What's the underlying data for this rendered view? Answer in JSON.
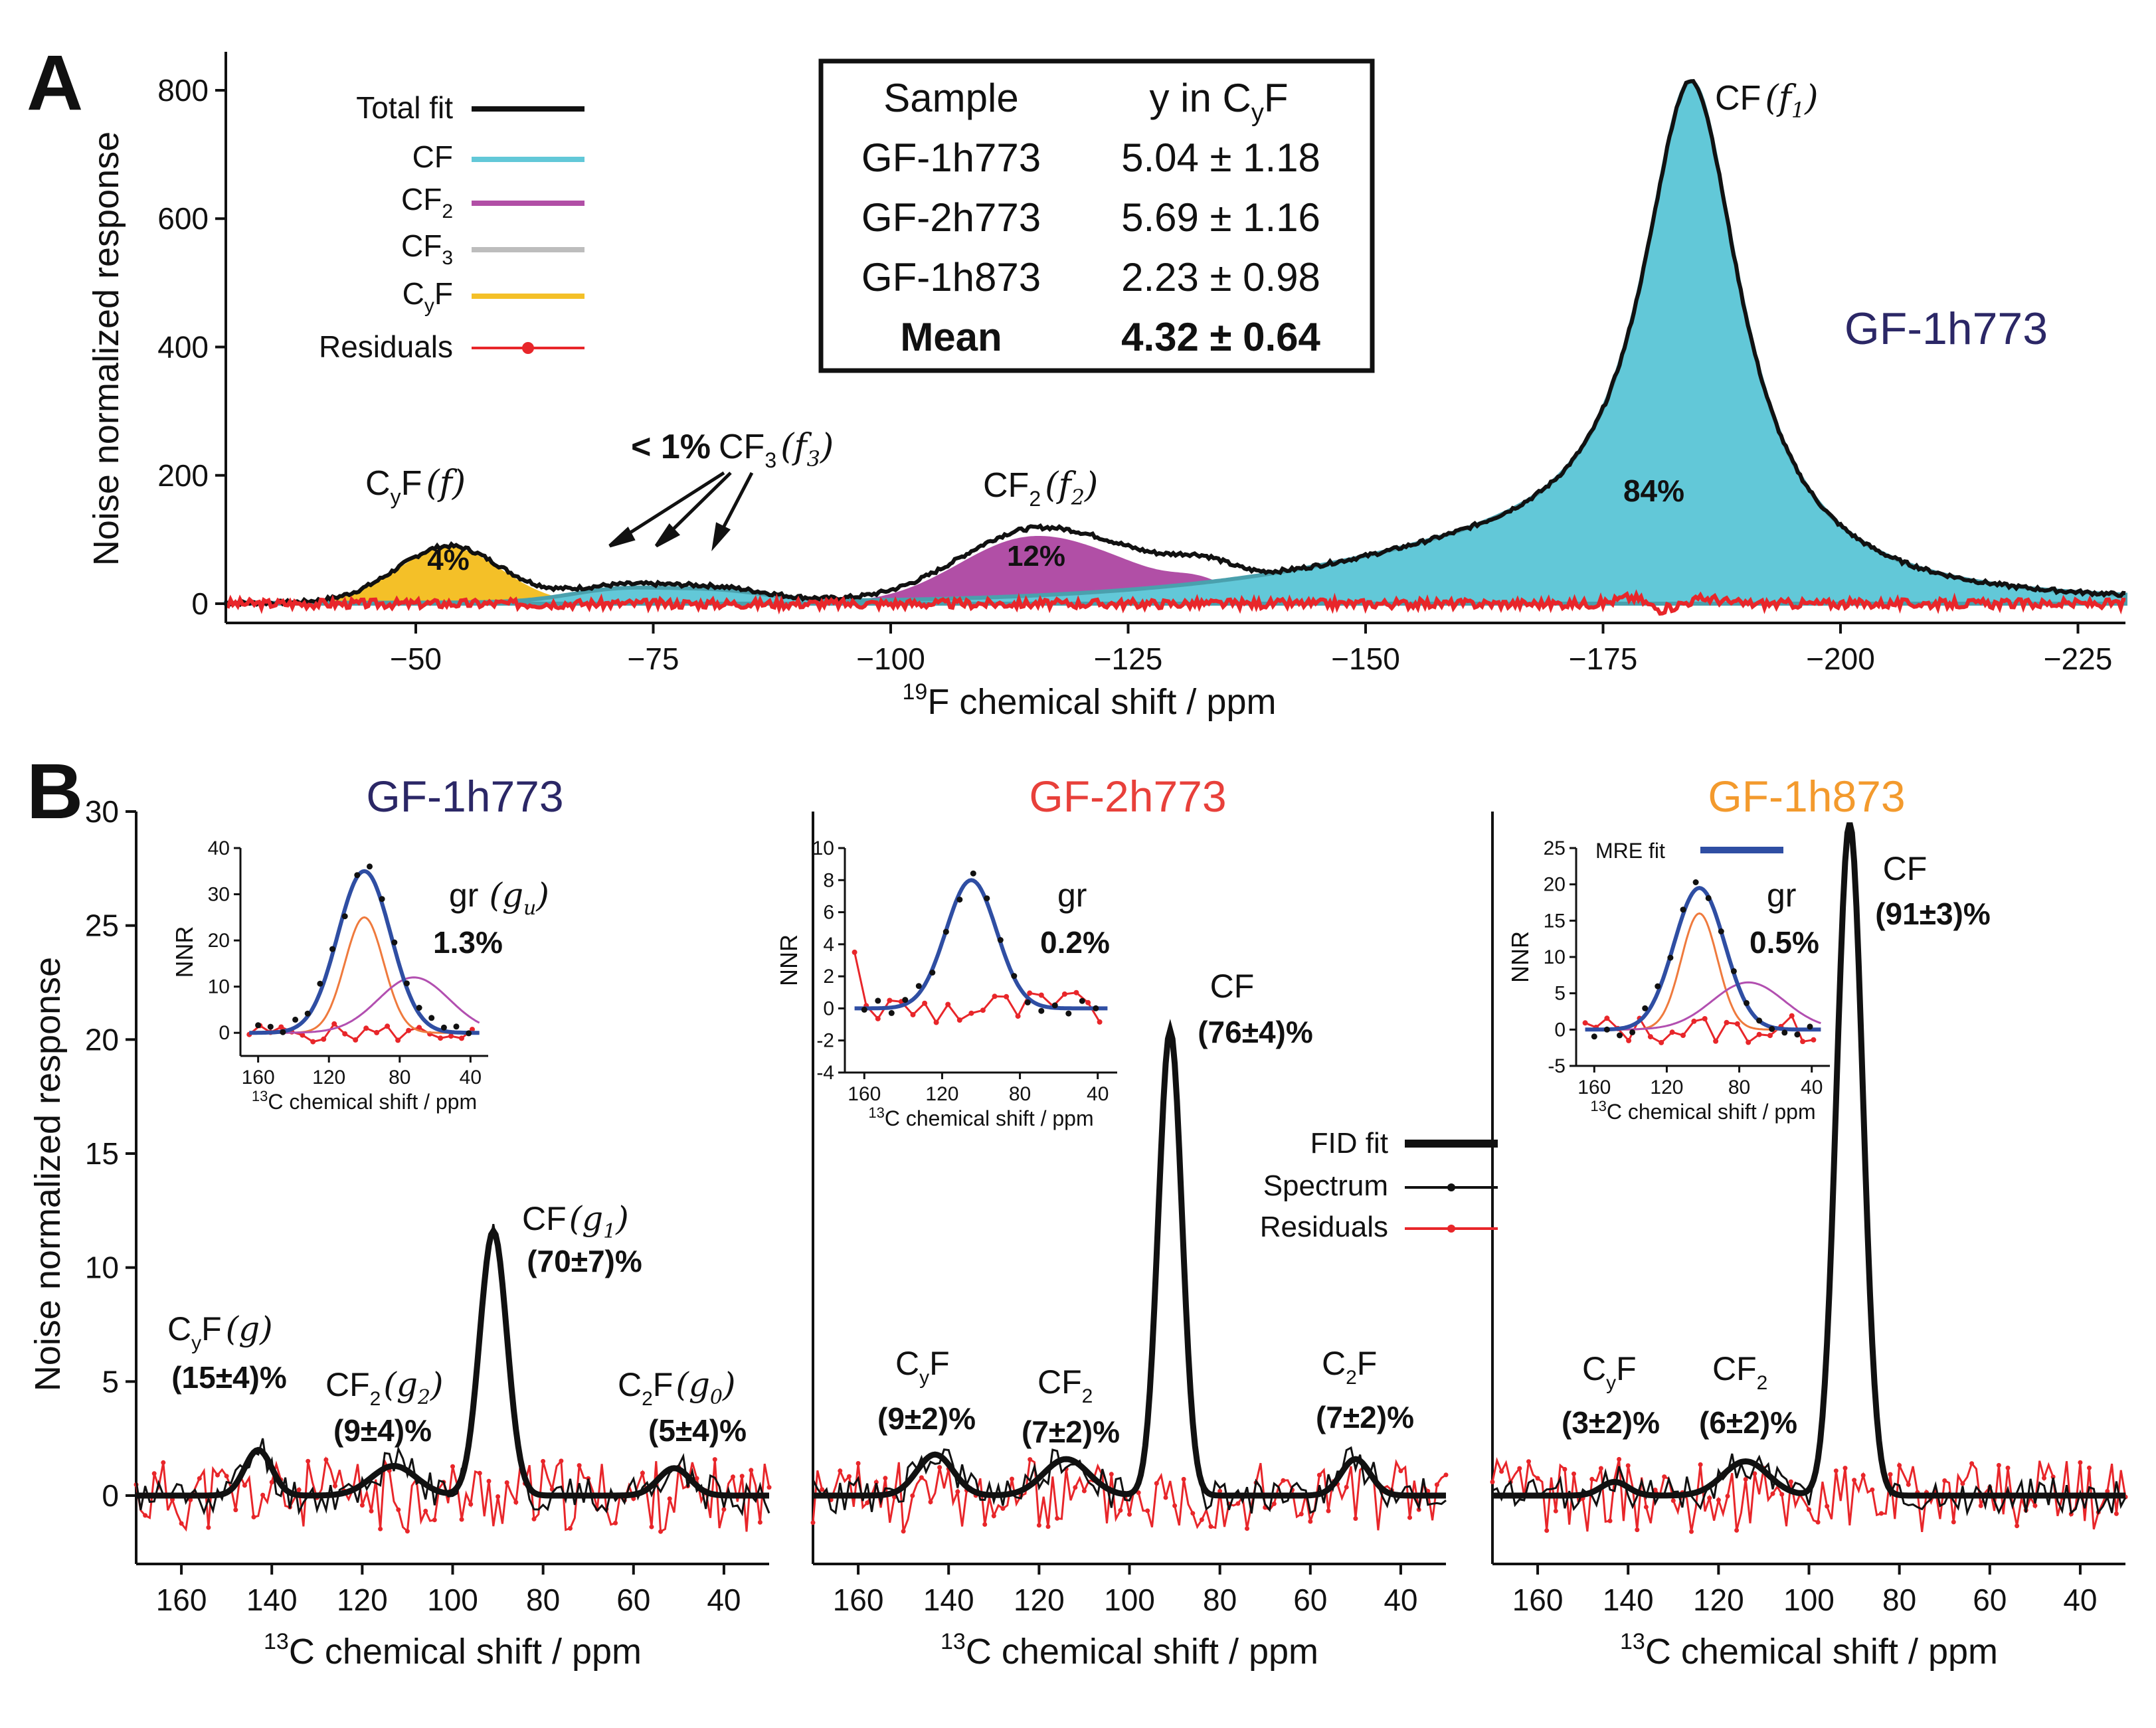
{
  "panel_a": {
    "letter": "A",
    "sample_title": "GF-1h773",
    "legend": [
      {
        "label": "Total fit",
        "sub": "",
        "label_tail": "",
        "color": "#111111"
      },
      {
        "label": "CF",
        "sub": "",
        "label_tail": "",
        "color": "#62c8d8"
      },
      {
        "label": "CF",
        "sub": "2",
        "label_tail": "",
        "color": "#b14fa6"
      },
      {
        "label": "CF",
        "sub": "3",
        "label_tail": "",
        "color": "#bdbdbd"
      },
      {
        "label": "C",
        "sub": "y",
        "label_tail": "F",
        "color": "#f4c028"
      },
      {
        "label": "Residuals",
        "sub": "",
        "label_tail": "",
        "color": "#e8262a"
      }
    ],
    "table": {
      "headers": [
        "Sample",
        "y in C",
        "y",
        "F"
      ],
      "rows": [
        {
          "sample": "GF-1h773",
          "value": "5.04 ± 1.18"
        },
        {
          "sample": "GF-2h773",
          "value": "5.69 ± 1.16"
        },
        {
          "sample": "GF-1h873",
          "value": "2.23 ± 0.98"
        },
        {
          "sample": "Mean",
          "value": "4.32 ± 0.64"
        }
      ]
    },
    "annotations": {
      "cyf": {
        "pre": "C",
        "sub": "y",
        "post": "F",
        "var": "(f)",
        "pct": "4%"
      },
      "cf3": {
        "lead": "< 1%",
        "pre": "CF",
        "sub": "3",
        "var": "(f",
        "var_sub": "3",
        "var_close": ")"
      },
      "cf2": {
        "pre": "CF",
        "sub": "2",
        "var": "(f",
        "var_sub": "2",
        "var_close": ")",
        "pct": "12%"
      },
      "cf": {
        "pre": "CF",
        "var": "(f",
        "var_sub": "1",
        "var_close": ")",
        "pct": "84%"
      }
    }
  },
  "panel_b": {
    "letter": "B",
    "ylabel": "Noise normalized response",
    "xlabel_sup": "13",
    "xlabel": "C chemical shift / ppm",
    "legend": [
      {
        "label": "FID fit",
        "color": "#111111"
      },
      {
        "label": "Spectrum",
        "color": "#111111"
      },
      {
        "label": "Residuals",
        "color": "#e8262a"
      }
    ],
    "subplots": [
      {
        "title": "GF-1h773",
        "title_color": "#2b2766",
        "labels": [
          {
            "pre": "C",
            "sub": "y",
            "post": "F",
            "var": "(g)",
            "pct": "(15±4)%"
          },
          {
            "pre": "CF",
            "sub": "2",
            "post": "",
            "var": "(g",
            "var_sub": "2",
            "pct": "(9±4)%"
          },
          {
            "pre": "CF",
            "sub": "",
            "post": "",
            "var": "(g",
            "var_sub": "1",
            "pct": "(70±7)%"
          },
          {
            "pre": "C",
            "sub": "2",
            "post": "F",
            "var": "(g",
            "var_sub": "0",
            "pct": "(5±4)%"
          }
        ],
        "inset": {
          "label": "gr",
          "var": "(g",
          "var_sub": "u",
          "pct": "1.3%",
          "ylabel": "NNR",
          "yticks": [
            "0",
            "10",
            "20",
            "30",
            "40"
          ],
          "xticks": [
            "160",
            "120",
            "80",
            "40"
          ],
          "xlabel_sup": "13",
          "xlabel": "C chemical shift / ppm"
        }
      },
      {
        "title": "GF-2h773",
        "title_color": "#e8403a",
        "labels": [
          {
            "pre": "C",
            "sub": "y",
            "post": "F",
            "pct": "(9±2)%"
          },
          {
            "pre": "CF",
            "sub": "2",
            "post": "",
            "pct": "(7±2)%"
          },
          {
            "pre": "CF",
            "sub": "",
            "post": "",
            "pct": "(76±4)%"
          },
          {
            "pre": "C",
            "sub": "2",
            "post": "F",
            "pct": "(7±2)%"
          }
        ],
        "inset": {
          "label": "gr",
          "pct": "0.2%",
          "ylabel": "NNR",
          "yticks": [
            "-4",
            "-2",
            "0",
            "2",
            "4",
            "6",
            "8",
            "10"
          ],
          "xticks": [
            "160",
            "120",
            "80",
            "40"
          ],
          "xlabel_sup": "13",
          "xlabel": "C chemical shift / ppm"
        }
      },
      {
        "title": "GF-1h873",
        "title_color": "#f39a2d",
        "labels": [
          {
            "pre": "C",
            "sub": "y",
            "post": "F",
            "pct": "(3±2)%"
          },
          {
            "pre": "CF",
            "sub": "2",
            "post": "",
            "pct": "(6±2)%"
          },
          {
            "pre": "CF",
            "sub": "",
            "post": "",
            "pct": "(91±3)%"
          }
        ],
        "inset": {
          "label": "gr",
          "pct": "0.5%",
          "legend": "MRE fit",
          "ylabel": "NNR",
          "yticks": [
            "-5",
            "0",
            "5",
            "10",
            "15",
            "20",
            "25"
          ],
          "xticks": [
            "160",
            "120",
            "80",
            "40"
          ],
          "xlabel_sup": "13",
          "xlabel": "C chemical shift / ppm"
        }
      }
    ]
  },
  "chart_data": [
    {
      "type": "area",
      "title": "GF-1h773",
      "xlabel_sup": "19",
      "xlabel": "F chemical shift / ppm",
      "ylabel": "Noise normalized response",
      "xlim": [
        -30,
        -230
      ],
      "ylim": [
        -30,
        860
      ],
      "xticks": [
        -50,
        -75,
        -100,
        -125,
        -150,
        -175,
        -200,
        -225
      ],
      "xtick_labels": [
        "−50",
        "−75",
        "−100",
        "−125",
        "−150",
        "−175",
        "−200",
        "−225"
      ],
      "yticks": [
        0,
        200,
        400,
        600,
        800
      ],
      "ytick_labels": [
        "0",
        "200",
        "400",
        "600",
        "800"
      ],
      "components": [
        {
          "name": "CF",
          "center": -184,
          "fraction": 0.84
        },
        {
          "name": "CF2",
          "center": -113,
          "fraction": 0.12
        },
        {
          "name": "CF3",
          "center": -72,
          "fraction": 0.01
        },
        {
          "name": "CyF",
          "center": -53,
          "fraction": 0.04
        }
      ],
      "peaks": [
        {
          "x": -53,
          "y": 95
        },
        {
          "x": -72,
          "y": 40
        },
        {
          "x": -82,
          "y": 35
        },
        {
          "x": -114,
          "y": 105
        },
        {
          "x": -184,
          "y": 825
        }
      ]
    },
    {
      "type": "line",
      "title": "GF-1h773",
      "xlim": [
        170,
        30
      ],
      "ylim": [
        -3,
        30
      ],
      "xticks": [
        160,
        140,
        120,
        100,
        80,
        60,
        40
      ],
      "xtick_labels": [
        "160",
        "140",
        "120",
        "100",
        "80",
        "60",
        "40"
      ],
      "yticks": [
        0,
        5,
        10,
        15,
        20,
        25,
        30
      ],
      "ytick_labels": [
        "0",
        "5",
        "10",
        "15",
        "20",
        "25",
        "30"
      ],
      "peaks": [
        {
          "name": "CyF",
          "x": 143,
          "y": 2.2
        },
        {
          "name": "CF2",
          "x": 113,
          "y": 1.3
        },
        {
          "name": "CF",
          "x": 91,
          "y": 11.7
        },
        {
          "name": "C2F",
          "x": 50,
          "y": 1.2
        }
      ]
    },
    {
      "type": "line",
      "title": "GF-2h773",
      "xlim": [
        170,
        30
      ],
      "ylim": [
        -3,
        30
      ],
      "xticks": [
        160,
        140,
        120,
        100,
        80,
        60,
        40
      ],
      "xtick_labels": [
        "160",
        "140",
        "120",
        "100",
        "80",
        "60",
        "40"
      ],
      "peaks": [
        {
          "name": "CyF",
          "x": 143,
          "y": 1.8
        },
        {
          "name": "CF2",
          "x": 114,
          "y": 1.6
        },
        {
          "name": "CF",
          "x": 91,
          "y": 20.5
        },
        {
          "name": "C2F",
          "x": 50,
          "y": 1.6
        }
      ]
    },
    {
      "type": "line",
      "title": "GF-1h873",
      "xlim": [
        170,
        30
      ],
      "ylim": [
        -3,
        30
      ],
      "xticks": [
        160,
        140,
        120,
        100,
        80,
        60,
        40
      ],
      "xtick_labels": [
        "160",
        "140",
        "120",
        "100",
        "80",
        "60",
        "40"
      ],
      "peaks": [
        {
          "name": "CyF",
          "x": 143,
          "y": 0.6
        },
        {
          "name": "CF2",
          "x": 114,
          "y": 1.5
        },
        {
          "name": "CF",
          "x": 91,
          "y": 29.5
        }
      ]
    }
  ]
}
